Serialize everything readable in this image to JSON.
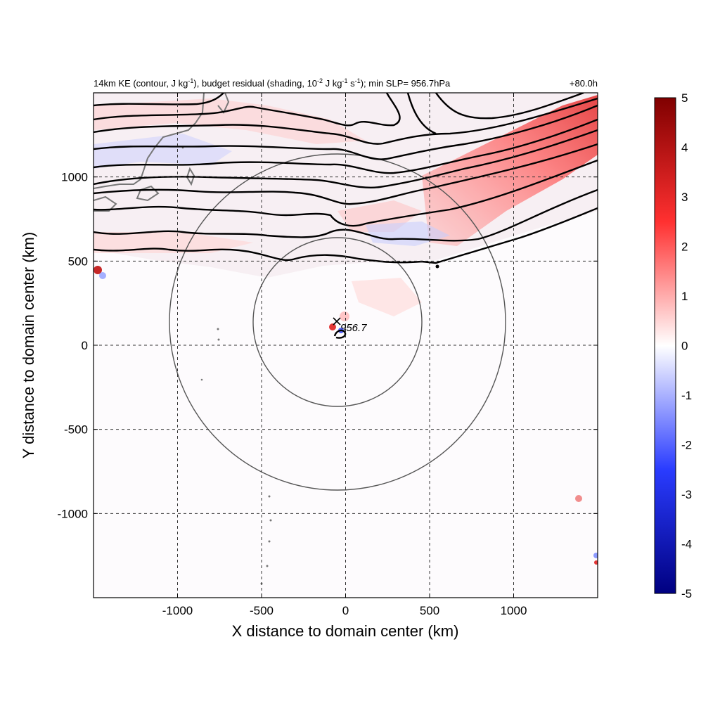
{
  "chart_data": {
    "type": "heatmap",
    "title_parts": {
      "t1": "14km KE (contour, J kg",
      "sup1": "-1",
      "t2": "), budget residual (shading, 10",
      "sup2": "-2",
      "t3": " J kg",
      "sup3": "-1",
      "t4": " s",
      "sup4": "-1",
      "t5": "); min SLP= 956.7hPa"
    },
    "time_label": "+80.0h",
    "xlabel": "X distance to domain center (km)",
    "ylabel": "Y distance to domain center (km)",
    "xlim": [
      -1500,
      1500
    ],
    "ylim": [
      -1500,
      1500
    ],
    "xticks": [
      -1000,
      -500,
      0,
      500,
      1000
    ],
    "yticks": [
      -1000,
      -500,
      0,
      500,
      1000
    ],
    "colorbar": {
      "min": -5,
      "max": 5,
      "ticks": [
        5,
        4,
        3,
        2,
        1,
        0,
        -1,
        -2,
        -3,
        -4,
        -5
      ],
      "colors": {
        "low": "#000080",
        "mid_low": "#2030ff",
        "zero": "#ffffff",
        "mid_high": "#ff2020",
        "high": "#800000"
      }
    },
    "storm_center": {
      "x": -50,
      "y": 140
    },
    "min_slp_label": "956.7",
    "radius_circles_km": [
      500,
      1000
    ],
    "contour_color": "#000000",
    "circle_color": "#555555",
    "coastline_color": "#777777"
  }
}
